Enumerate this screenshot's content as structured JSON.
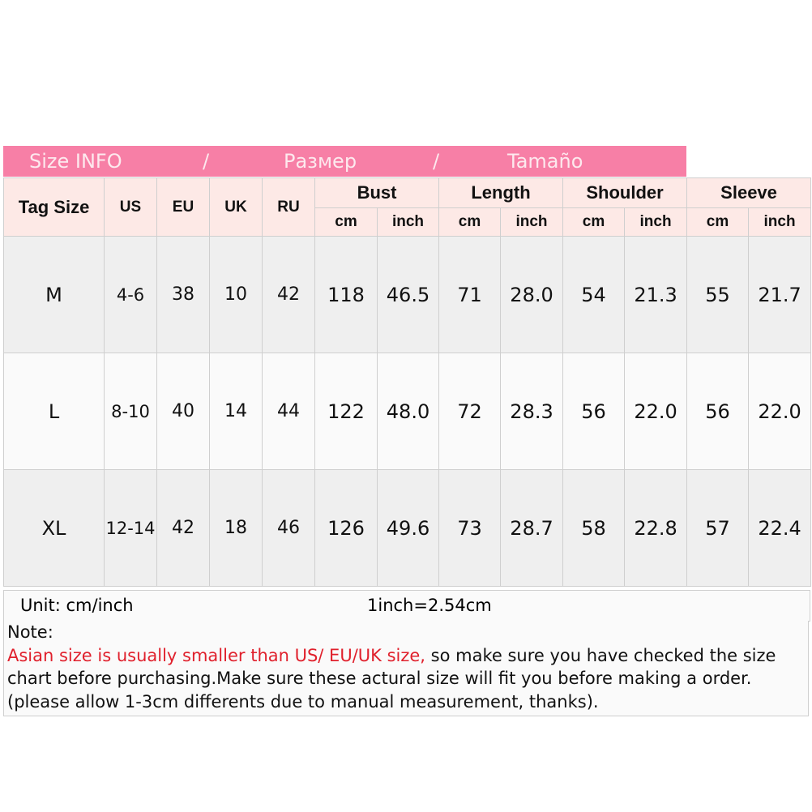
{
  "title": {
    "part1": "Size INFO",
    "sep1": "/",
    "part2": "Размер",
    "sep2": "/",
    "part3": "Tamaño"
  },
  "colors": {
    "title_bg": "#f77fa6",
    "header_bg": "#fde9e6",
    "note_red": "#e0202c"
  },
  "headers": {
    "tag": "Tag Size",
    "us": "US",
    "eu": "EU",
    "uk": "UK",
    "ru": "RU",
    "bust": "Bust",
    "length": "Length",
    "shoulder": "Shoulder",
    "sleeve": "Sleeve",
    "cm": "cm",
    "inch": "inch"
  },
  "rows": [
    [
      "M",
      "4-6",
      "38",
      "10",
      "42",
      "118",
      "46.5",
      "71",
      "28.0",
      "54",
      "21.3",
      "55",
      "21.7"
    ],
    [
      "L",
      "8-10",
      "40",
      "14",
      "44",
      "122",
      "48.0",
      "72",
      "28.3",
      "56",
      "22.0",
      "56",
      "22.0"
    ],
    [
      "XL",
      "12-14",
      "42",
      "18",
      "46",
      "126",
      "49.6",
      "73",
      "28.7",
      "58",
      "22.8",
      "57",
      "22.4"
    ]
  ],
  "unit": {
    "label": "Unit: cm/inch",
    "conversion": "1inch=2.54cm"
  },
  "note": {
    "label": "Note:",
    "warning": "Asian size is usually smaller than US/ EU/UK size,",
    "text": " so make sure you have checked the size chart before purchasing.Make sure these actural size will fit you before making a order.(please allow 1-3cm differents due to manual measurement, thanks)."
  }
}
